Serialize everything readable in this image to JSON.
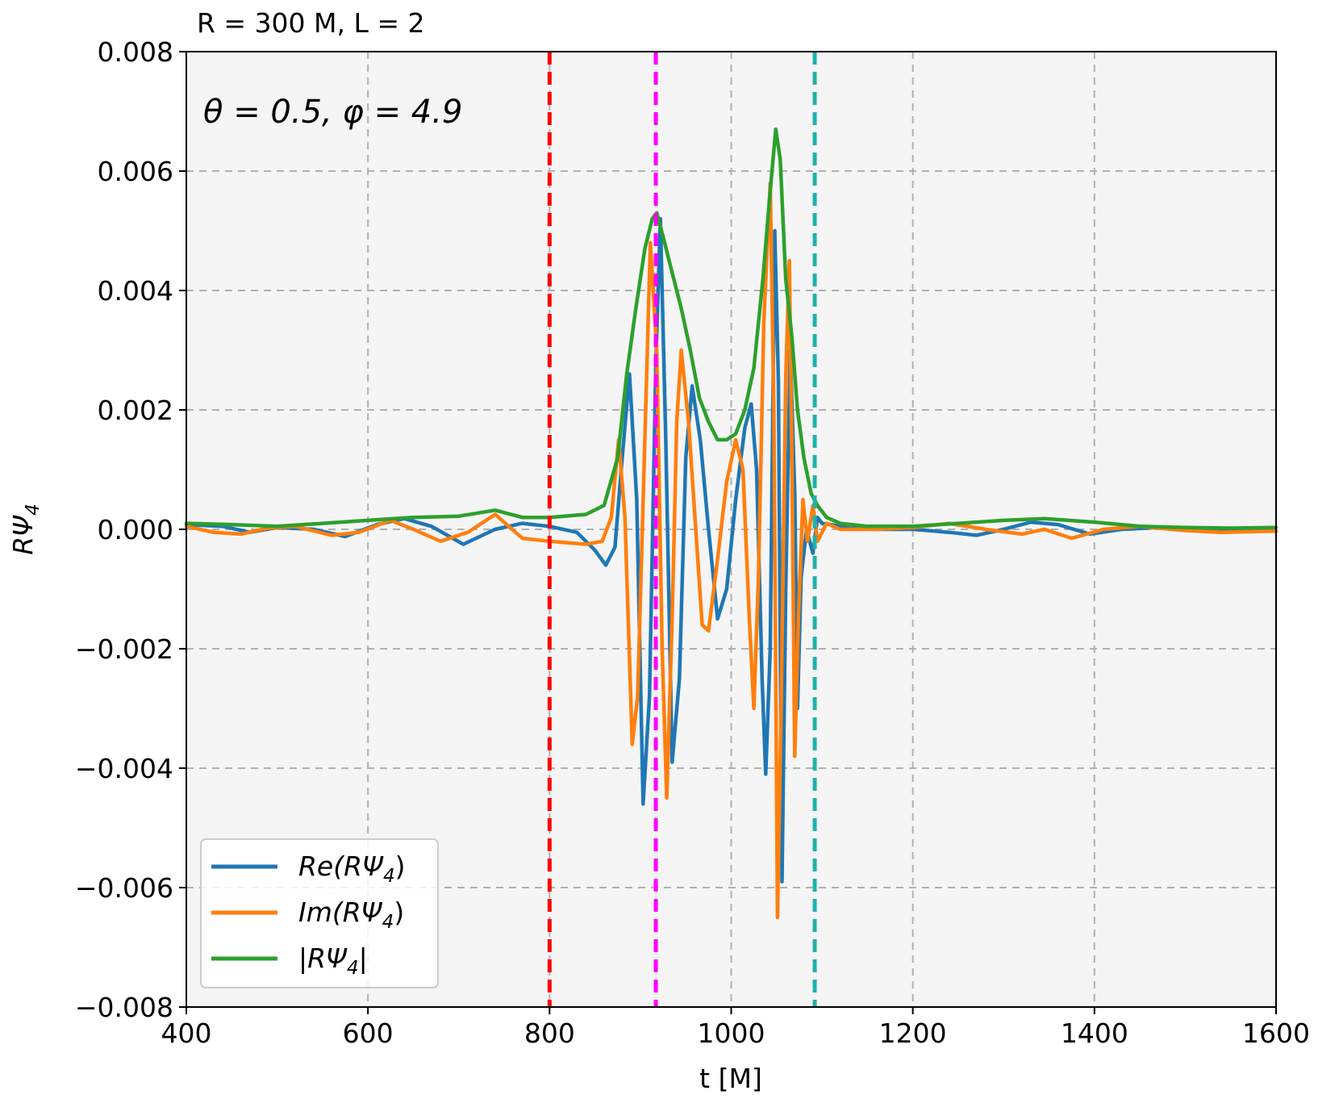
{
  "chart_data": {
    "type": "line",
    "title": "R = 300 M, L = 2",
    "annotation": "θ = 0.5, φ = 4.9",
    "xlabel": "t [M]",
    "ylabel_main": "RΨ",
    "ylabel_sub": "4",
    "xlim": [
      400,
      1600
    ],
    "ylim": [
      -0.008,
      0.008
    ],
    "xticks": [
      400,
      600,
      800,
      1000,
      1200,
      1400,
      1600
    ],
    "xtick_labels": [
      "400",
      "600",
      "800",
      "1000",
      "1200",
      "1400",
      "1600"
    ],
    "yticks": [
      -0.008,
      -0.006,
      -0.004,
      -0.002,
      0.0,
      0.002,
      0.004,
      0.006,
      0.008
    ],
    "ytick_labels": [
      "−0.008",
      "−0.006",
      "−0.004",
      "−0.002",
      "0.000",
      "0.002",
      "0.004",
      "0.006",
      "0.008"
    ],
    "grid": true,
    "legend_position": "lower-left",
    "vlines": [
      {
        "x": 800,
        "color": "#ff0000"
      },
      {
        "x": 917,
        "color": "#ff00ff"
      },
      {
        "x": 1092,
        "color": "#20b2aa"
      }
    ],
    "series": [
      {
        "name": "Re(RΨ4)",
        "legend_main": "Re(RΨ",
        "legend_sub": "4",
        "legend_tail": ")",
        "color": "#1f77b4",
        "points": [
          [
            400,
            8e-05
          ],
          [
            440,
            5e-05
          ],
          [
            470,
            -5e-05
          ],
          [
            500,
            3e-05
          ],
          [
            540,
            0.0
          ],
          [
            575,
            -0.00012
          ],
          [
            610,
            8e-05
          ],
          [
            640,
            0.00018
          ],
          [
            670,
            5e-05
          ],
          [
            705,
            -0.00025
          ],
          [
            740,
            0.0
          ],
          [
            770,
            0.0001
          ],
          [
            800,
            5e-05
          ],
          [
            830,
            -5e-05
          ],
          [
            850,
            -0.00035
          ],
          [
            862,
            -0.0006
          ],
          [
            872,
            -0.0003
          ],
          [
            880,
            0.0012
          ],
          [
            888,
            0.0026
          ],
          [
            896,
            0.0005
          ],
          [
            903,
            -0.0046
          ],
          [
            910,
            -0.0028
          ],
          [
            917,
            0.0028
          ],
          [
            922,
            0.0052
          ],
          [
            928,
            0.0015
          ],
          [
            935,
            -0.0039
          ],
          [
            943,
            -0.0025
          ],
          [
            950,
            0.0012
          ],
          [
            957,
            0.0024
          ],
          [
            966,
            0.0015
          ],
          [
            975,
            0.0
          ],
          [
            985,
            -0.0015
          ],
          [
            995,
            -0.001
          ],
          [
            1005,
            0.0005
          ],
          [
            1015,
            0.0017
          ],
          [
            1022,
            0.0021
          ],
          [
            1028,
            0.001
          ],
          [
            1034,
            -0.0025
          ],
          [
            1038,
            -0.0041
          ],
          [
            1043,
            -0.002
          ],
          [
            1048,
            0.005
          ],
          [
            1052,
            0.0025
          ],
          [
            1056,
            -0.0059
          ],
          [
            1060,
            -0.001
          ],
          [
            1065,
            0.003
          ],
          [
            1070,
            0.0006
          ],
          [
            1073,
            -0.003
          ],
          [
            1077,
            -0.0008
          ],
          [
            1083,
            0.0
          ],
          [
            1090,
            -0.0004
          ],
          [
            1095,
            0.0002
          ],
          [
            1100,
            0.0001
          ],
          [
            1110,
            8e-05
          ],
          [
            1130,
            2e-05
          ],
          [
            1160,
            0.0
          ],
          [
            1200,
            0.0
          ],
          [
            1240,
            -5e-05
          ],
          [
            1270,
            -0.0001
          ],
          [
            1300,
            0.0
          ],
          [
            1330,
            0.00012
          ],
          [
            1360,
            8e-05
          ],
          [
            1395,
            -8e-05
          ],
          [
            1430,
            0.0
          ],
          [
            1470,
            3e-05
          ],
          [
            1520,
            0.0
          ],
          [
            1560,
            0.0
          ],
          [
            1600,
            -3e-05
          ]
        ]
      },
      {
        "name": "Im(RΨ4)",
        "legend_main": "Im(RΨ",
        "legend_sub": "4",
        "legend_tail": ")",
        "color": "#ff7f0e",
        "points": [
          [
            400,
            5e-05
          ],
          [
            430,
            -5e-05
          ],
          [
            460,
            -8e-05
          ],
          [
            490,
            2e-05
          ],
          [
            520,
            5e-05
          ],
          [
            560,
            -0.0001
          ],
          [
            590,
            -5e-05
          ],
          [
            625,
            0.00015
          ],
          [
            650,
            0.0
          ],
          [
            680,
            -0.0002
          ],
          [
            710,
            -5e-05
          ],
          [
            740,
            0.00025
          ],
          [
            770,
            -0.00015
          ],
          [
            800,
            -0.0002
          ],
          [
            840,
            -0.00025
          ],
          [
            858,
            -0.0002
          ],
          [
            868,
            0.0002
          ],
          [
            876,
            0.0015
          ],
          [
            883,
            0.0002
          ],
          [
            891,
            -0.0036
          ],
          [
            897,
            -0.0028
          ],
          [
            904,
            0.001
          ],
          [
            911,
            0.0048
          ],
          [
            918,
            0.003
          ],
          [
            924,
            -0.002
          ],
          [
            929,
            -0.0045
          ],
          [
            935,
            -0.0015
          ],
          [
            940,
            0.0018
          ],
          [
            945,
            0.003
          ],
          [
            953,
            0.0018
          ],
          [
            961,
            0.0
          ],
          [
            968,
            -0.0016
          ],
          [
            975,
            -0.0017
          ],
          [
            985,
            -0.0005
          ],
          [
            995,
            0.0008
          ],
          [
            1005,
            0.0015
          ],
          [
            1013,
            0.001
          ],
          [
            1020,
            -0.0015
          ],
          [
            1025,
            -0.003
          ],
          [
            1030,
            -0.0008
          ],
          [
            1036,
            0.0035
          ],
          [
            1043,
            0.0058
          ],
          [
            1047,
            0.002
          ],
          [
            1051,
            -0.0065
          ],
          [
            1055,
            -0.003
          ],
          [
            1060,
            0.0025
          ],
          [
            1064,
            0.0045
          ],
          [
            1067,
            0.001
          ],
          [
            1070,
            -0.0038
          ],
          [
            1074,
            -0.0015
          ],
          [
            1079,
            0.0005
          ],
          [
            1084,
            -0.0002
          ],
          [
            1090,
            0.0004
          ],
          [
            1095,
            -0.0002
          ],
          [
            1105,
            0.0001
          ],
          [
            1120,
            0.0
          ],
          [
            1160,
            0.0
          ],
          [
            1200,
            3e-05
          ],
          [
            1240,
            0.0001
          ],
          [
            1280,
            0.0
          ],
          [
            1320,
            -8e-05
          ],
          [
            1345,
            0.0
          ],
          [
            1375,
            -0.00015
          ],
          [
            1410,
            0.0
          ],
          [
            1450,
            5e-05
          ],
          [
            1500,
            -2e-05
          ],
          [
            1540,
            -5e-05
          ],
          [
            1600,
            -3e-05
          ]
        ]
      },
      {
        "name": "|RΨ4|",
        "legend_main": "|RΨ",
        "legend_sub": "4",
        "legend_tail": "|",
        "color": "#2ca02c",
        "points": [
          [
            400,
            0.0001
          ],
          [
            450,
            8e-05
          ],
          [
            500,
            5e-05
          ],
          [
            550,
            0.0001
          ],
          [
            600,
            0.00015
          ],
          [
            650,
            0.0002
          ],
          [
            700,
            0.00022
          ],
          [
            740,
            0.00032
          ],
          [
            770,
            0.0002
          ],
          [
            800,
            0.0002
          ],
          [
            840,
            0.00025
          ],
          [
            860,
            0.0004
          ],
          [
            875,
            0.0012
          ],
          [
            885,
            0.0026
          ],
          [
            895,
            0.0037
          ],
          [
            905,
            0.0047
          ],
          [
            913,
            0.0052
          ],
          [
            918,
            0.0053
          ],
          [
            925,
            0.0049
          ],
          [
            935,
            0.0043
          ],
          [
            945,
            0.0037
          ],
          [
            955,
            0.003
          ],
          [
            965,
            0.0022
          ],
          [
            975,
            0.0018
          ],
          [
            985,
            0.0015
          ],
          [
            995,
            0.0015
          ],
          [
            1005,
            0.0016
          ],
          [
            1015,
            0.002
          ],
          [
            1025,
            0.0027
          ],
          [
            1035,
            0.0042
          ],
          [
            1042,
            0.0055
          ],
          [
            1049,
            0.0067
          ],
          [
            1054,
            0.0062
          ],
          [
            1060,
            0.0042
          ],
          [
            1067,
            0.0032
          ],
          [
            1073,
            0.002
          ],
          [
            1080,
            0.0012
          ],
          [
            1088,
            0.0006
          ],
          [
            1095,
            0.0004
          ],
          [
            1105,
            0.0002
          ],
          [
            1120,
            0.0001
          ],
          [
            1150,
            5e-05
          ],
          [
            1200,
            5e-05
          ],
          [
            1250,
            0.0001
          ],
          [
            1300,
            0.00015
          ],
          [
            1345,
            0.00018
          ],
          [
            1400,
            0.00012
          ],
          [
            1450,
            5e-05
          ],
          [
            1500,
            3e-05
          ],
          [
            1550,
            2e-05
          ],
          [
            1600,
            3e-05
          ]
        ]
      }
    ]
  }
}
